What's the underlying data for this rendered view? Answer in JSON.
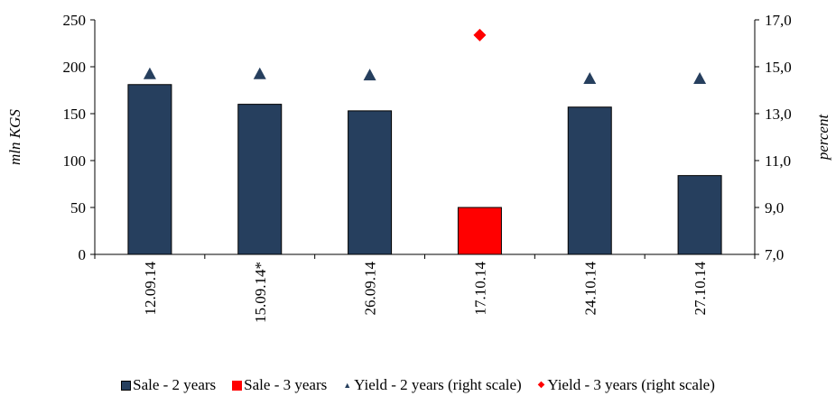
{
  "chart_data": {
    "type": "bar",
    "categories": [
      "12.09.14",
      "15.09.14*",
      "26.09.14",
      "17.10.14",
      "24.10.14",
      "27.10.14"
    ],
    "series": [
      {
        "name": "Sale - 2 years",
        "kind": "bar",
        "axis": "left",
        "color": "#263F5E",
        "values": [
          181,
          160,
          153,
          null,
          157,
          84
        ]
      },
      {
        "name": "Sale - 3 years",
        "kind": "bar",
        "axis": "left",
        "color": "#FF0000",
        "values": [
          null,
          null,
          null,
          50,
          null,
          null
        ]
      },
      {
        "name": "Yield - 2 years (right scale)",
        "kind": "marker",
        "marker": "triangle",
        "axis": "right",
        "color": "#263F5E",
        "values": [
          14.7,
          14.7,
          14.65,
          null,
          14.5,
          14.5
        ]
      },
      {
        "name": "Yield - 3 years (right scale)",
        "kind": "marker",
        "marker": "diamond",
        "axis": "right",
        "color": "#FF0000",
        "values": [
          null,
          null,
          null,
          16.35,
          null,
          null
        ]
      }
    ],
    "ylabel": "mln KGS",
    "y2label": "percent",
    "ylim": [
      0,
      250
    ],
    "yticks": [
      "0",
      "50",
      "100",
      "150",
      "200",
      "250"
    ],
    "y2lim": [
      7.0,
      17.0
    ],
    "y2ticks": [
      "7,0",
      "9,0",
      "11,0",
      "13,0",
      "15,0",
      "17,0"
    ],
    "grid": false,
    "legend_position": "bottom"
  }
}
